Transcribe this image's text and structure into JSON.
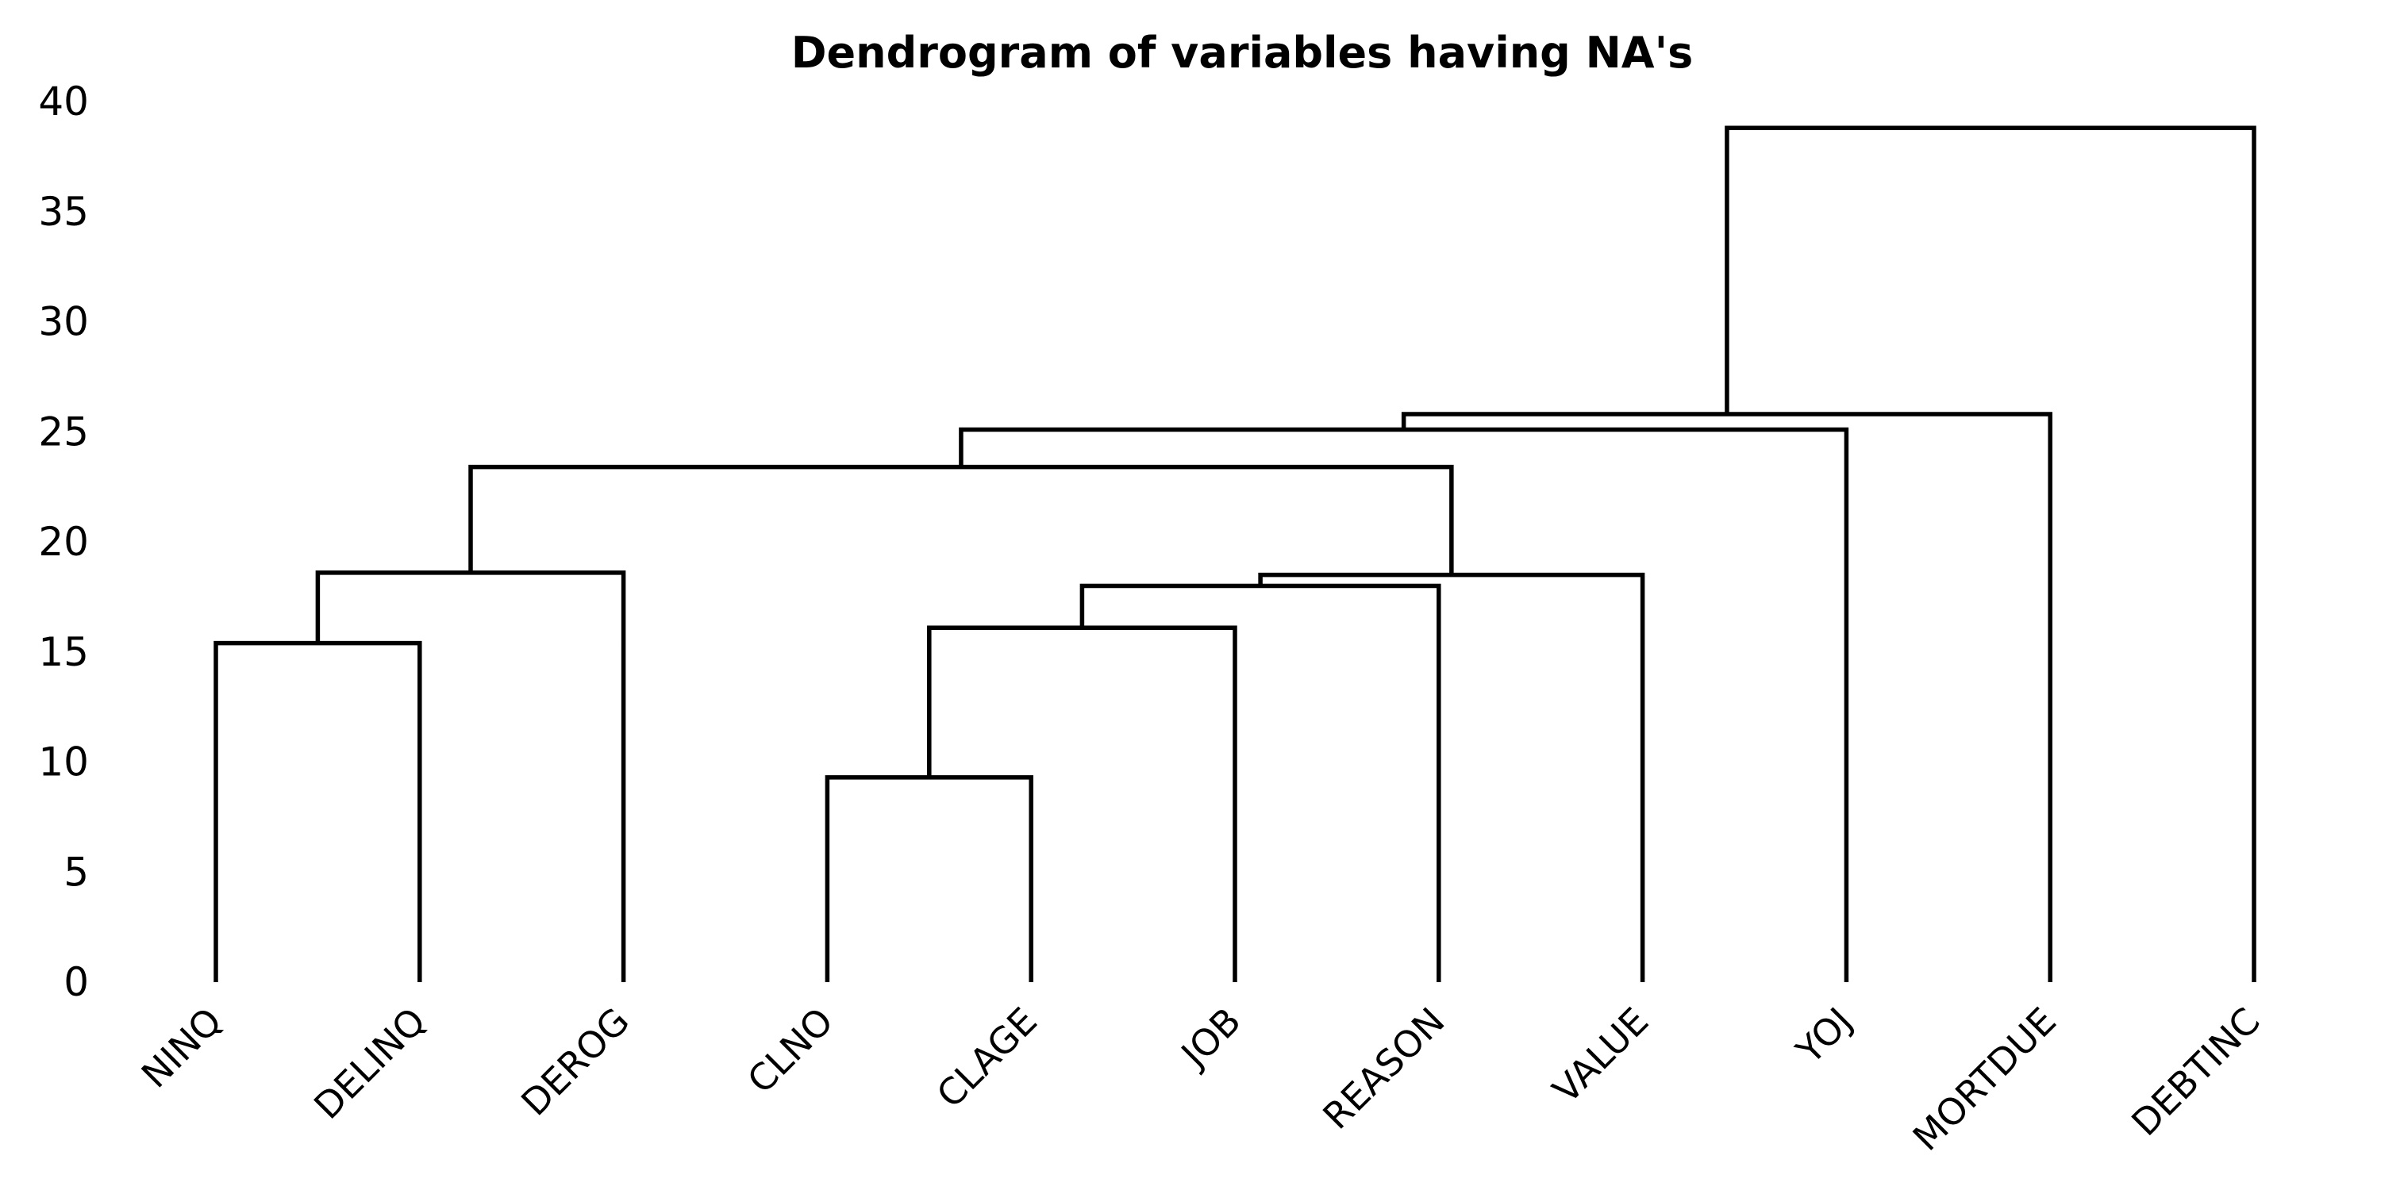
{
  "chart_data": {
    "type": "dendrogram",
    "title": "Dendrogram of variables having NA's",
    "xlabel": "",
    "ylabel": "",
    "ylim": [
      0,
      40
    ],
    "yticks": [
      0,
      5,
      10,
      15,
      20,
      25,
      30,
      35,
      40
    ],
    "grid": false,
    "leaves": [
      "NINQ",
      "DELINQ",
      "DEROG",
      "CLNO",
      "CLAGE",
      "JOB",
      "REASON",
      "VALUE",
      "YOJ",
      "MORTDUE",
      "DEBTINC"
    ],
    "merges": [
      {
        "left": "CLNO",
        "right": "CLAGE",
        "height": 9.3
      },
      {
        "left": "NINQ",
        "right": "DELINQ",
        "height": 15.4
      },
      {
        "left": "CLNO+CLAGE",
        "right": "JOB",
        "height": 16.1
      },
      {
        "left": "CLNO+CLAGE+JOB",
        "right": "REASON",
        "height": 18.0
      },
      {
        "left": "CLNO+CLAGE+JOB+REASON",
        "right": "VALUE",
        "height": 18.5
      },
      {
        "left": "NINQ+DELINQ",
        "right": "DEROG",
        "height": 18.6
      },
      {
        "left": "NINQ+DELINQ+DEROG",
        "right": "CLNO+CLAGE+JOB+REASON+VALUE",
        "height": 23.4
      },
      {
        "left": "NINQ..VALUE",
        "right": "YOJ",
        "height": 25.1
      },
      {
        "left": "NINQ..YOJ",
        "right": "MORTDUE",
        "height": 25.8
      },
      {
        "left": "NINQ..MORTDUE",
        "right": "DEBTINC",
        "height": 38.8
      }
    ]
  }
}
